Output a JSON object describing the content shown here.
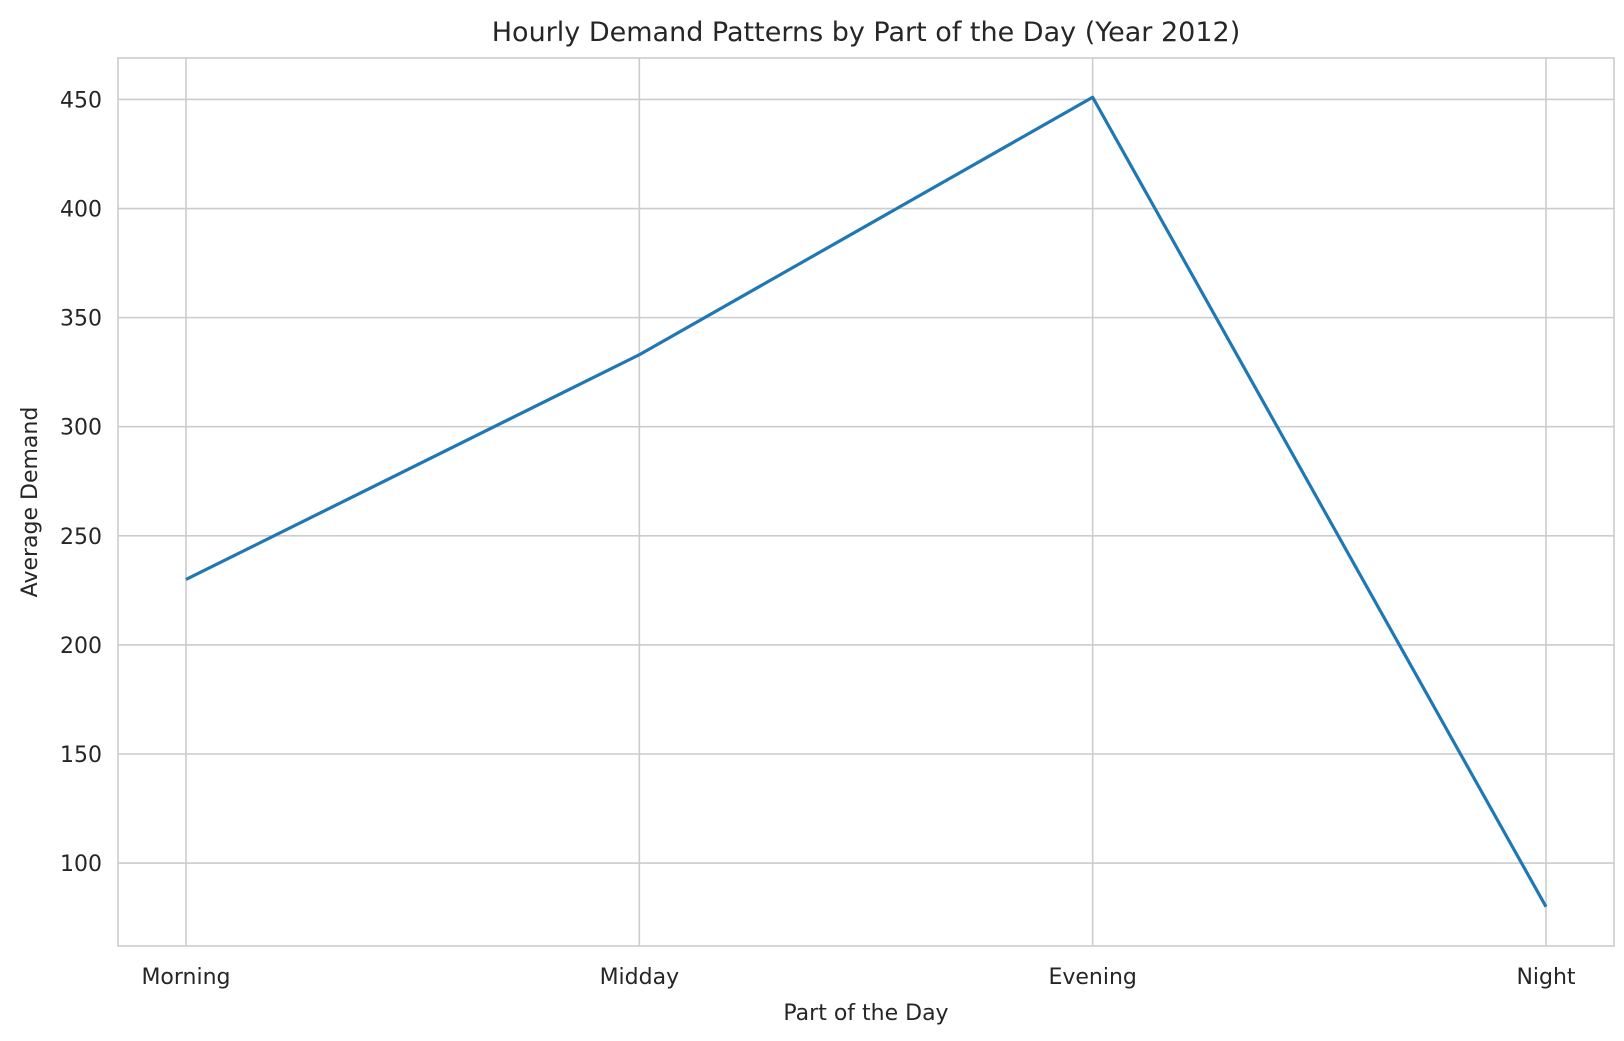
{
  "chart_data": {
    "type": "line",
    "title": "Hourly Demand Patterns by Part of the Day (Year 2012)",
    "xlabel": "Part of the Day",
    "ylabel": "Average Demand",
    "categories": [
      "Morning",
      "Midday",
      "Evening",
      "Night"
    ],
    "series": [
      {
        "values": [
          230,
          333,
          451,
          80
        ]
      }
    ],
    "ylim": [
      62,
      469
    ],
    "yticks": [
      100,
      150,
      200,
      250,
      300,
      350,
      400,
      450
    ],
    "grid": true,
    "line_color": "#1f77b4"
  }
}
